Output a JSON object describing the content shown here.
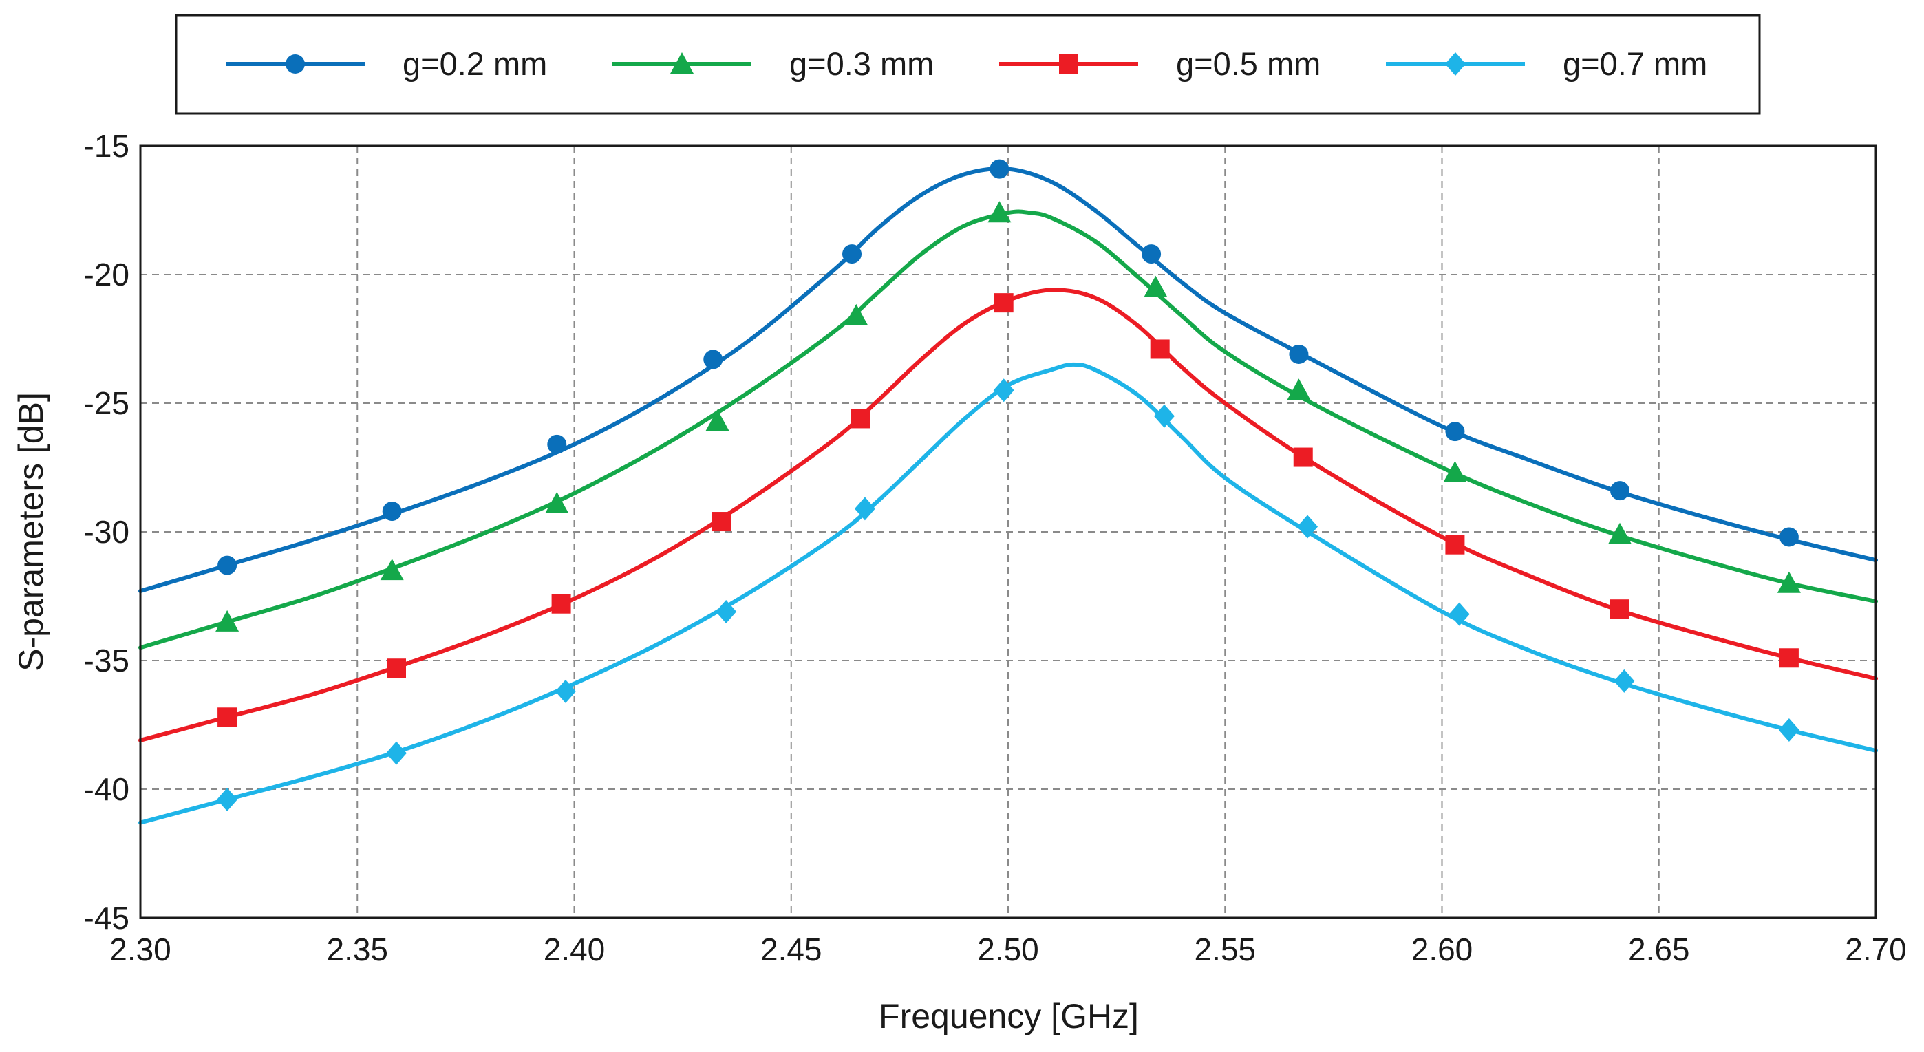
{
  "chart_data": {
    "type": "line",
    "title": "",
    "xlabel": "Frequency [GHz]",
    "ylabel": "S-parameters [dB]",
    "xlim": [
      2.3,
      2.7
    ],
    "ylim": [
      -45,
      -15
    ],
    "grid": true,
    "legend_position": "top",
    "x_ticks": [
      "2.30",
      "2.35",
      "2.40",
      "2.45",
      "2.50",
      "2.55",
      "2.60",
      "2.65",
      "2.70"
    ],
    "y_ticks": [
      "-15",
      "-20",
      "-25",
      "-30",
      "-35",
      "-40",
      "-45"
    ],
    "series": [
      {
        "name": "g=0.2 mm",
        "color": "#0a6fba",
        "marker": "circle",
        "curve_x": [
          2.3,
          2.32,
          2.34,
          2.36,
          2.38,
          2.4,
          2.42,
          2.44,
          2.46,
          2.47,
          2.48,
          2.49,
          2.5,
          2.51,
          2.52,
          2.53,
          2.54,
          2.55,
          2.57,
          2.6,
          2.62,
          2.64,
          2.66,
          2.68,
          2.7
        ],
        "curve_y": [
          -32.3,
          -31.3,
          -30.3,
          -29.2,
          -28.0,
          -26.6,
          -24.8,
          -22.6,
          -19.8,
          -18.2,
          -16.9,
          -16.1,
          -15.9,
          -16.4,
          -17.5,
          -18.9,
          -20.3,
          -21.5,
          -23.3,
          -25.9,
          -27.2,
          -28.4,
          -29.4,
          -30.3,
          -31.1
        ],
        "marker_x": [
          2.32,
          2.358,
          2.396,
          2.432,
          2.464,
          2.498,
          2.533,
          2.567,
          2.603,
          2.641,
          2.68
        ],
        "marker_y": [
          -31.3,
          -29.2,
          -26.6,
          -23.3,
          -19.2,
          -15.9,
          -19.2,
          -23.1,
          -26.1,
          -28.4,
          -30.2
        ]
      },
      {
        "name": "g=0.3 mm",
        "color": "#14a84a",
        "marker": "triangle",
        "curve_x": [
          2.3,
          2.32,
          2.34,
          2.36,
          2.38,
          2.4,
          2.42,
          2.44,
          2.46,
          2.47,
          2.48,
          2.49,
          2.5,
          2.505,
          2.51,
          2.52,
          2.53,
          2.54,
          2.55,
          2.57,
          2.6,
          2.62,
          2.64,
          2.66,
          2.68,
          2.7
        ],
        "curve_y": [
          -34.5,
          -33.5,
          -32.5,
          -31.3,
          -30.0,
          -28.5,
          -26.7,
          -24.6,
          -22.2,
          -20.7,
          -19.2,
          -18.1,
          -17.6,
          -17.6,
          -17.8,
          -18.7,
          -20.1,
          -21.6,
          -23.0,
          -25.0,
          -27.5,
          -28.9,
          -30.1,
          -31.1,
          -32.0,
          -32.7
        ],
        "marker_x": [
          2.32,
          2.358,
          2.396,
          2.433,
          2.465,
          2.498,
          2.534,
          2.567,
          2.603,
          2.641,
          2.68
        ],
        "marker_y": [
          -33.5,
          -31.5,
          -28.9,
          -25.7,
          -21.6,
          -17.6,
          -20.5,
          -24.5,
          -27.7,
          -30.1,
          -32.0
        ]
      },
      {
        "name": "g=0.5 mm",
        "color": "#ec1c24",
        "marker": "square",
        "curve_x": [
          2.3,
          2.32,
          2.34,
          2.36,
          2.38,
          2.4,
          2.42,
          2.44,
          2.46,
          2.47,
          2.48,
          2.49,
          2.5,
          2.51,
          2.52,
          2.53,
          2.54,
          2.55,
          2.57,
          2.6,
          2.62,
          2.64,
          2.66,
          2.68,
          2.7
        ],
        "curve_y": [
          -38.1,
          -37.2,
          -36.3,
          -35.2,
          -34.0,
          -32.6,
          -30.9,
          -28.8,
          -26.4,
          -24.9,
          -23.3,
          -21.9,
          -21.0,
          -20.6,
          -20.9,
          -22.0,
          -23.6,
          -25.0,
          -27.3,
          -30.2,
          -31.7,
          -33.0,
          -34.0,
          -34.9,
          -35.7
        ],
        "marker_x": [
          2.32,
          2.359,
          2.397,
          2.434,
          2.466,
          2.499,
          2.535,
          2.568,
          2.603,
          2.641,
          2.68
        ],
        "marker_y": [
          -37.2,
          -35.3,
          -32.8,
          -29.6,
          -25.6,
          -21.1,
          -22.9,
          -27.1,
          -30.5,
          -33.0,
          -34.9
        ]
      },
      {
        "name": "g=0.7 mm",
        "color": "#1eb4e8",
        "marker": "diamond",
        "curve_x": [
          2.3,
          2.32,
          2.34,
          2.36,
          2.38,
          2.4,
          2.42,
          2.44,
          2.46,
          2.47,
          2.48,
          2.49,
          2.5,
          2.51,
          2.515,
          2.52,
          2.53,
          2.54,
          2.55,
          2.57,
          2.6,
          2.62,
          2.64,
          2.66,
          2.68,
          2.7
        ],
        "curve_y": [
          -41.3,
          -40.4,
          -39.5,
          -38.5,
          -37.3,
          -35.9,
          -34.3,
          -32.4,
          -30.2,
          -28.8,
          -27.2,
          -25.6,
          -24.3,
          -23.7,
          -23.5,
          -23.7,
          -24.7,
          -26.3,
          -27.9,
          -30.1,
          -33.1,
          -34.6,
          -35.8,
          -36.8,
          -37.7,
          -38.5
        ],
        "marker_x": [
          2.32,
          2.359,
          2.398,
          2.435,
          2.467,
          2.499,
          2.536,
          2.569,
          2.604,
          2.642,
          2.68
        ],
        "marker_y": [
          -40.4,
          -38.6,
          -36.2,
          -33.1,
          -29.1,
          -24.5,
          -25.5,
          -29.8,
          -33.2,
          -35.8,
          -37.7
        ]
      }
    ]
  }
}
